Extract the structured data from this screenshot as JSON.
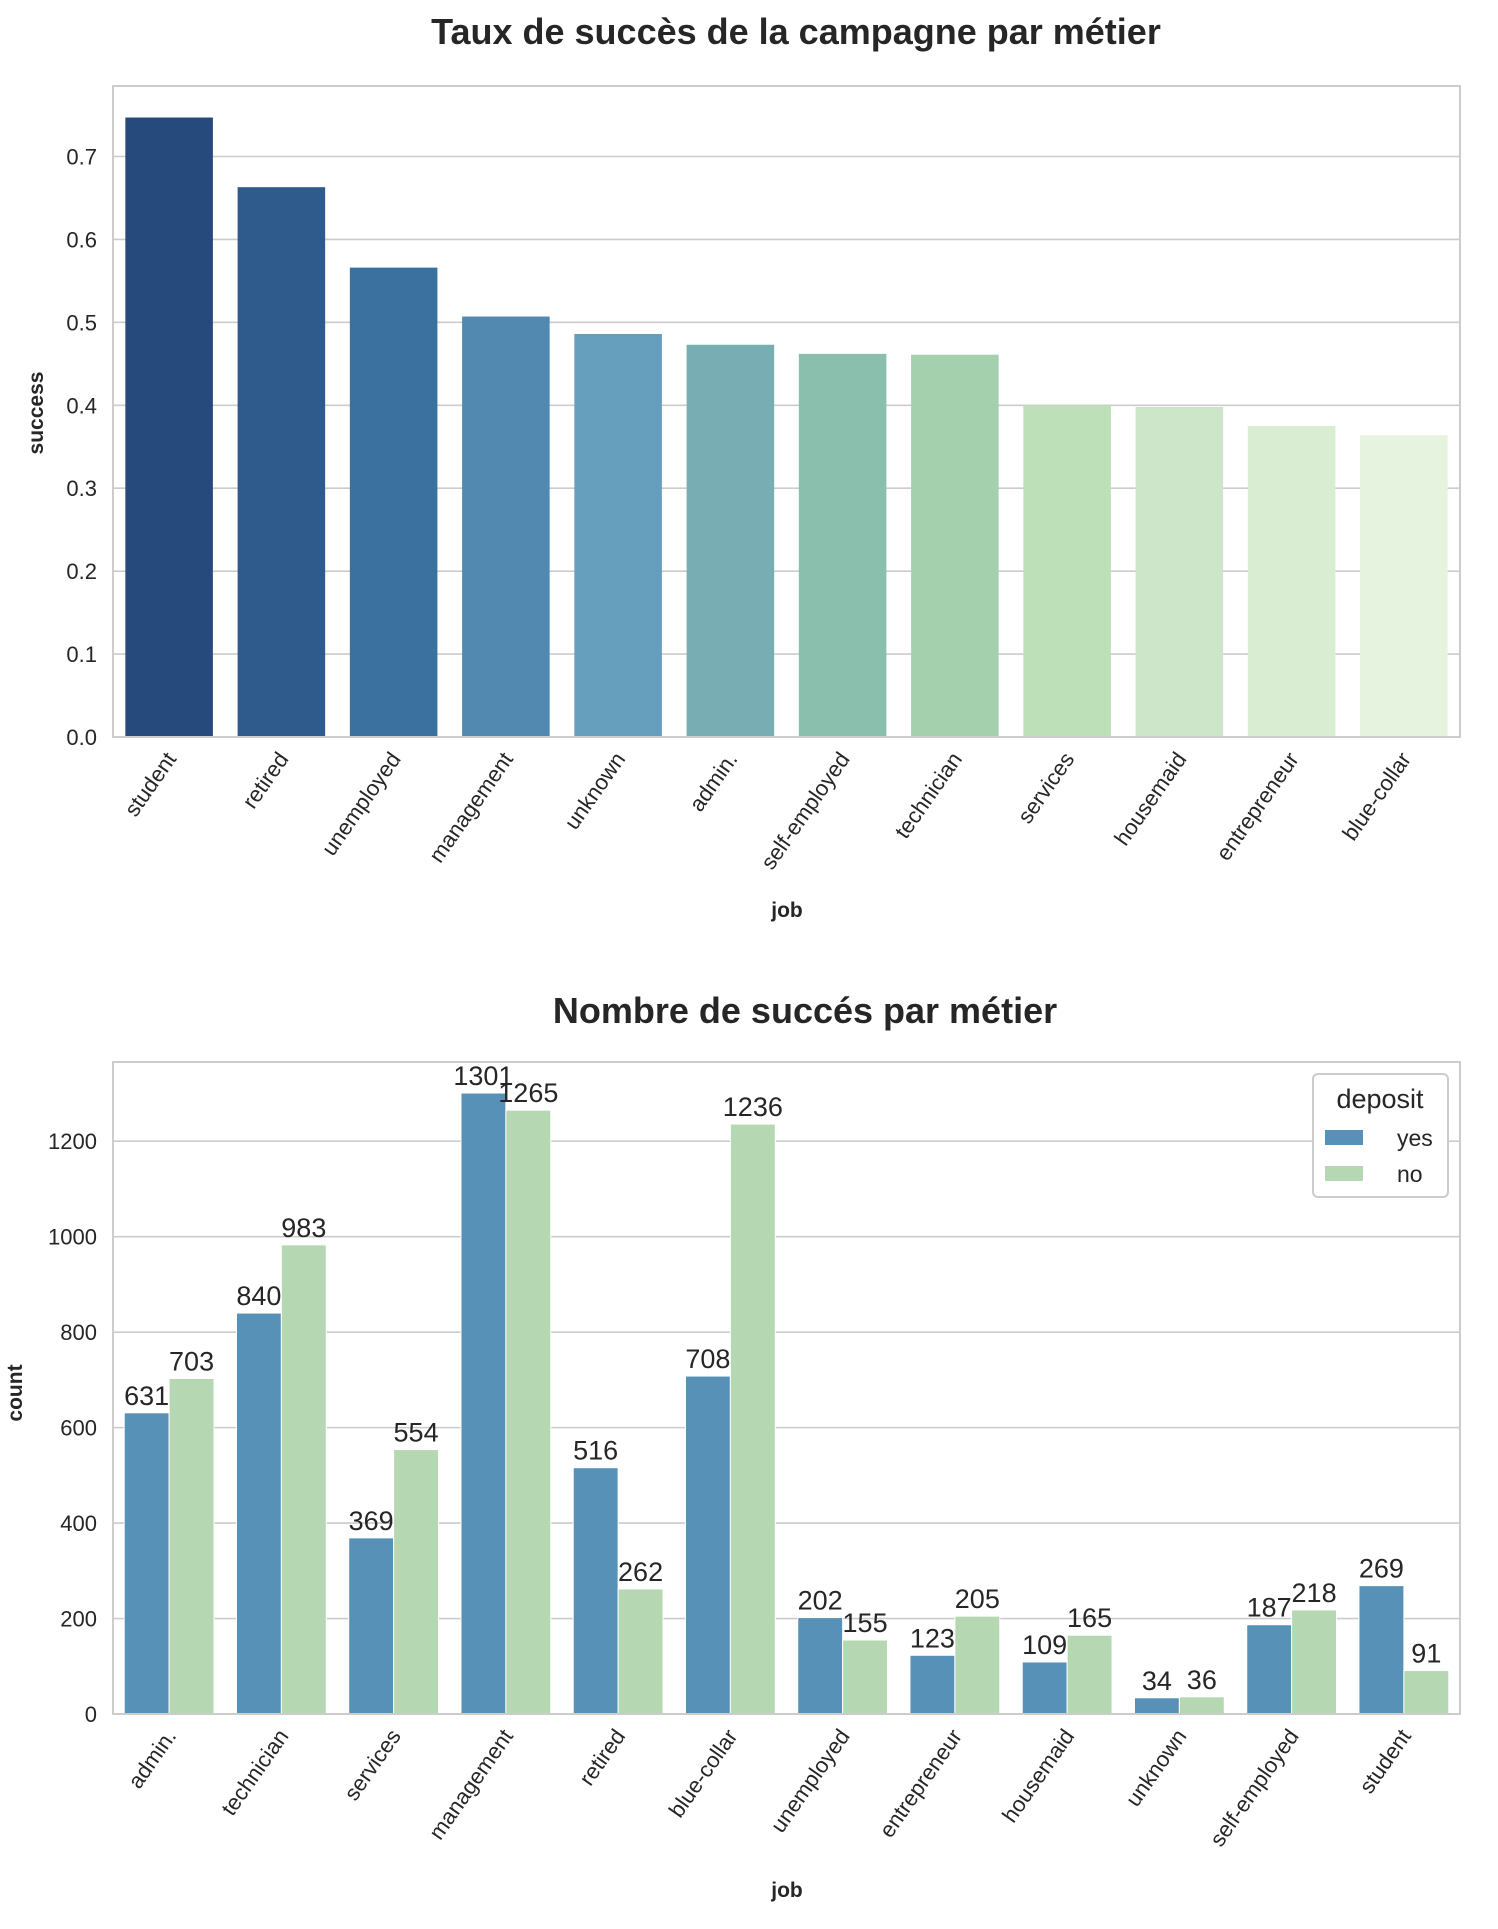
{
  "colors": {
    "grid": "#cccccc",
    "frame": "#cccccc",
    "yes": "#5891b7",
    "no": "#b5d7b2",
    "gradient": [
      "#274a7c",
      "#2e5b8c",
      "#3a719f",
      "#5189b0",
      "#669fbe",
      "#79adb4",
      "#8bbfad",
      "#a5d0ad",
      "#bde0b8",
      "#cde6c9",
      "#d9edd3",
      "#e6f3df"
    ]
  },
  "chart_data": [
    {
      "type": "bar",
      "title": "Taux de succès de la campagne par métier",
      "xlabel": "job",
      "ylabel": "success",
      "categories": [
        "student",
        "retired",
        "unemployed",
        "management",
        "unknown",
        "admin.",
        "self-employed",
        "technician",
        "services",
        "housemaid",
        "entrepreneur",
        "blue-collar"
      ],
      "values": [
        0.747,
        0.663,
        0.566,
        0.507,
        0.486,
        0.473,
        0.462,
        0.461,
        0.4,
        0.398,
        0.375,
        0.364
      ],
      "ylim": [
        0,
        0.785
      ],
      "yticks": [
        0.0,
        0.1,
        0.2,
        0.3,
        0.4,
        0.5,
        0.6,
        0.7
      ],
      "ytick_labels": [
        "0.0",
        "0.1",
        "0.2",
        "0.3",
        "0.4",
        "0.5",
        "0.6",
        "0.7"
      ],
      "grid": true
    },
    {
      "type": "bar",
      "title": "Nombre de succés par métier",
      "xlabel": "job",
      "ylabel": "count",
      "categories": [
        "admin.",
        "technician",
        "services",
        "management",
        "retired",
        "blue-collar",
        "unemployed",
        "entrepreneur",
        "housemaid",
        "unknown",
        "self-employed",
        "student"
      ],
      "series": [
        {
          "name": "yes",
          "values": [
            631,
            840,
            369,
            1301,
            516,
            708,
            202,
            123,
            109,
            34,
            187,
            269
          ]
        },
        {
          "name": "no",
          "values": [
            703,
            983,
            554,
            1265,
            262,
            1236,
            155,
            205,
            165,
            36,
            218,
            91
          ]
        }
      ],
      "ylim": [
        0,
        1366
      ],
      "yticks": [
        0,
        200,
        400,
        600,
        800,
        1000,
        1200
      ],
      "ytick_labels": [
        "0",
        "200",
        "400",
        "600",
        "800",
        "1000",
        "1200"
      ],
      "legend": {
        "title": "deposit",
        "position": "top-right"
      },
      "grid": true
    }
  ]
}
